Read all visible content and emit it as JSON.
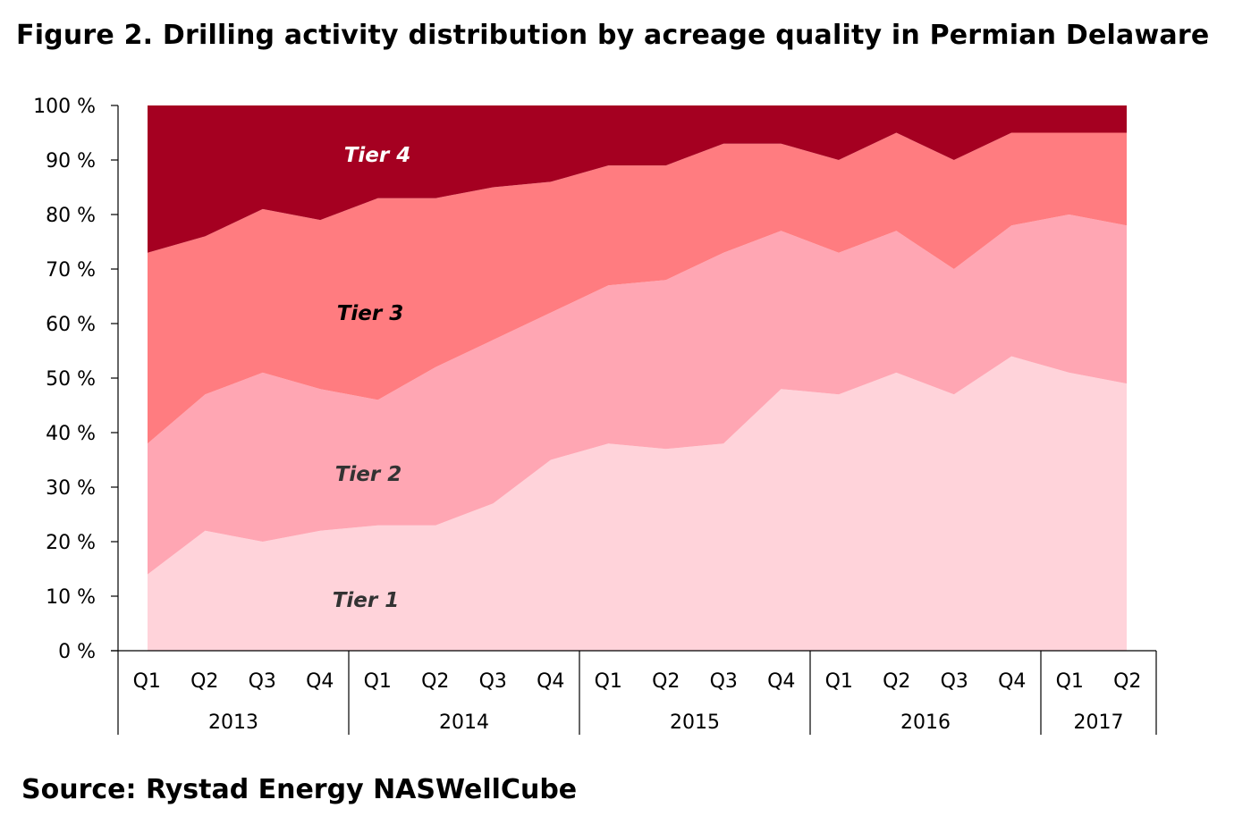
{
  "title": "Figure 2. Drilling activity distribution by acreage quality in Permian Delaware",
  "source": "Source: Rystad Energy NASWellCube",
  "colors": {
    "tier1": "#ffd3da",
    "tier2": "#ffa6b3",
    "tier3": "#ff7c80",
    "tier4": "#a50021",
    "axis": "#000000"
  },
  "chart_data": {
    "type": "area",
    "stacked": true,
    "percent": true,
    "title": "Figure 2. Drilling activity distribution by acreage quality in Permian Delaware",
    "categories": [
      "Q1",
      "Q2",
      "Q3",
      "Q4",
      "Q1",
      "Q2",
      "Q3",
      "Q4",
      "Q1",
      "Q2",
      "Q3",
      "Q4",
      "Q1",
      "Q2",
      "Q3",
      "Q4",
      "Q1",
      "Q2"
    ],
    "year_groups": [
      {
        "label": "2013",
        "count": 4
      },
      {
        "label": "2014",
        "count": 4
      },
      {
        "label": "2015",
        "count": 4
      },
      {
        "label": "2016",
        "count": 4
      },
      {
        "label": "2017",
        "count": 2
      }
    ],
    "y_ticks": [
      "0 %",
      "10 %",
      "20 %",
      "30 %",
      "40 %",
      "50 %",
      "60 %",
      "70 %",
      "80 %",
      "90 %",
      "100 %"
    ],
    "ylim": [
      0,
      100
    ],
    "grid": false,
    "series": [
      {
        "name": "Tier 1",
        "values": [
          14,
          22,
          20,
          22,
          23,
          23,
          27,
          35,
          38,
          37,
          38,
          48,
          47,
          51,
          47,
          54,
          51,
          49
        ]
      },
      {
        "name": "Tier 2",
        "values": [
          24,
          25,
          31,
          26,
          23,
          29,
          30,
          27,
          29,
          31,
          35,
          29,
          26,
          26,
          23,
          24,
          29,
          29
        ]
      },
      {
        "name": "Tier 3",
        "values": [
          35,
          29,
          30,
          31,
          37,
          31,
          28,
          24,
          22,
          21,
          20,
          16,
          17,
          18,
          20,
          17,
          15,
          17
        ]
      },
      {
        "name": "Tier 4",
        "values": [
          27,
          24,
          19,
          21,
          17,
          17,
          15,
          14,
          11,
          11,
          7,
          7,
          10,
          5,
          10,
          5,
          5,
          5
        ]
      }
    ]
  }
}
